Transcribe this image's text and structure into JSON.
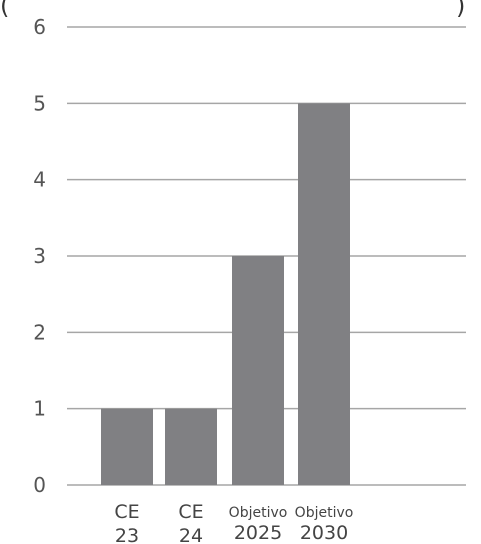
{
  "chart_data": {
    "type": "bar",
    "top_fragment_left": "(",
    "top_fragment_right": ")",
    "categories": [
      {
        "line1": "CE",
        "line2": "23"
      },
      {
        "line1": "CE",
        "line2": "24"
      },
      {
        "line1": "Objetivo",
        "line2": "2025"
      },
      {
        "line1": "Objetivo",
        "line2": "2030"
      }
    ],
    "values": [
      1,
      1,
      3,
      5
    ],
    "ylim": [
      0,
      6
    ],
    "yticks": [
      "0",
      "1",
      "2",
      "3",
      "4",
      "5",
      "6"
    ],
    "grid": true,
    "bar_color": "#808083",
    "grid_color": "#a6a6a6",
    "title": "",
    "xlabel": "",
    "ylabel": ""
  }
}
